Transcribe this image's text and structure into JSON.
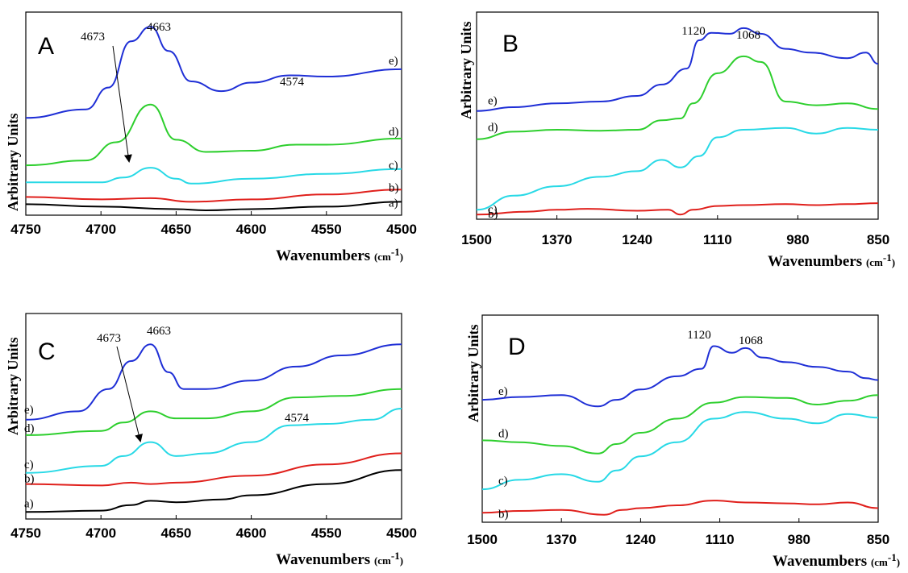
{
  "chart_data": [
    {
      "type": "line",
      "panel_label": "A",
      "ylabel": "Arbitrary  Units",
      "xlabel": "Wavenumbers",
      "xunit": "(cm",
      "xunit_sup": "-1",
      "xunit_close": ")",
      "x_range": [
        4750,
        4500
      ],
      "x_ticks": [
        "4750",
        "4700",
        "4650",
        "4600",
        "4550",
        "4500"
      ],
      "y_ticks": [],
      "annotations": [
        "4673",
        "4663",
        "4574"
      ],
      "series": [
        {
          "label": "a)",
          "color": "#000000",
          "x": [
            4750,
            4700,
            4650,
            4630,
            4600,
            4550,
            4500
          ],
          "y": [
            0.04,
            0.02,
            0.0,
            -0.01,
            0.0,
            0.02,
            0.06
          ]
        },
        {
          "label": "b)",
          "color": "#e0201c",
          "x": [
            4750,
            4700,
            4667,
            4640,
            4600,
            4550,
            4500
          ],
          "y": [
            0.1,
            0.08,
            0.09,
            0.06,
            0.08,
            0.12,
            0.16
          ]
        },
        {
          "label": "c)",
          "color": "#28d9e6",
          "x": [
            4750,
            4700,
            4685,
            4667,
            4650,
            4640,
            4600,
            4550,
            4500
          ],
          "y": [
            0.22,
            0.22,
            0.26,
            0.34,
            0.25,
            0.21,
            0.25,
            0.29,
            0.33
          ]
        },
        {
          "label": "d)",
          "color": "#2ecf2e",
          "x": [
            4750,
            4710,
            4690,
            4667,
            4650,
            4630,
            4600,
            4570,
            4550,
            4500
          ],
          "y": [
            0.36,
            0.4,
            0.55,
            0.86,
            0.57,
            0.47,
            0.48,
            0.53,
            0.53,
            0.58
          ]
        },
        {
          "label": "e)",
          "color": "#1f2fd6",
          "x": [
            4750,
            4710,
            4695,
            4680,
            4667,
            4655,
            4640,
            4620,
            4600,
            4574,
            4550,
            4500
          ],
          "y": [
            0.75,
            0.82,
            1.0,
            1.38,
            1.5,
            1.3,
            1.05,
            0.97,
            1.04,
            1.1,
            1.09,
            1.15
          ]
        }
      ]
    },
    {
      "type": "line",
      "panel_label": "B",
      "ylabel": "Arbitrary  Units",
      "xlabel": "Wavenumbers",
      "xunit": "(cm",
      "xunit_sup": "-1",
      "xunit_close": ")",
      "x_range": [
        1500,
        850
      ],
      "x_ticks": [
        "1500",
        "1370",
        "1240",
        "1110",
        "980",
        "850"
      ],
      "y_ticks": [],
      "annotations": [
        "1120",
        "1068"
      ],
      "series": [
        {
          "label": "b)",
          "color": "#e0201c",
          "x": [
            1500,
            1420,
            1370,
            1320,
            1240,
            1190,
            1170,
            1150,
            1110,
            1068,
            1000,
            950,
            900,
            850
          ],
          "y": [
            0.0,
            0.03,
            0.05,
            0.06,
            0.04,
            0.05,
            0.0,
            0.05,
            0.09,
            0.1,
            0.11,
            0.1,
            0.11,
            0.12
          ]
        },
        {
          "label": "c)",
          "color": "#28d9e6",
          "x": [
            1500,
            1440,
            1370,
            1300,
            1240,
            1200,
            1170,
            1140,
            1110,
            1068,
            1000,
            950,
            900,
            850
          ],
          "y": [
            0.05,
            0.2,
            0.3,
            0.4,
            0.46,
            0.58,
            0.5,
            0.62,
            0.82,
            0.9,
            0.92,
            0.86,
            0.92,
            0.9
          ]
        },
        {
          "label": "d)",
          "color": "#2ecf2e",
          "x": [
            1500,
            1440,
            1370,
            1300,
            1240,
            1200,
            1170,
            1150,
            1110,
            1068,
            1040,
            1000,
            950,
            900,
            850
          ],
          "y": [
            0.8,
            0.88,
            0.9,
            0.89,
            0.9,
            1.0,
            1.02,
            1.18,
            1.5,
            1.68,
            1.62,
            1.2,
            1.16,
            1.18,
            1.12
          ]
        },
        {
          "label": "e)",
          "color": "#1f2fd6",
          "x": [
            1500,
            1440,
            1370,
            1300,
            1240,
            1200,
            1160,
            1140,
            1120,
            1090,
            1068,
            1040,
            1000,
            960,
            900,
            870,
            850
          ],
          "y": [
            1.1,
            1.14,
            1.18,
            1.2,
            1.26,
            1.38,
            1.55,
            1.85,
            1.93,
            1.92,
            1.98,
            1.92,
            1.76,
            1.72,
            1.66,
            1.72,
            1.6
          ]
        }
      ]
    },
    {
      "type": "line",
      "panel_label": "C",
      "ylabel": "Arbitrary  Units",
      "xlabel": "Wavenumbers",
      "xunit": "(cm",
      "xunit_sup": "-1",
      "xunit_close": ")",
      "x_range": [
        4750,
        4500
      ],
      "x_ticks": [
        "4750",
        "4700",
        "4650",
        "4600",
        "4550",
        "4500"
      ],
      "y_ticks": [],
      "annotations": [
        "4673",
        "4663",
        "4574"
      ],
      "series": [
        {
          "label": "a)",
          "color": "#000000",
          "x": [
            4750,
            4700,
            4680,
            4667,
            4650,
            4620,
            4600,
            4550,
            4500
          ],
          "y": [
            0.0,
            0.01,
            0.05,
            0.08,
            0.07,
            0.09,
            0.12,
            0.2,
            0.3
          ]
        },
        {
          "label": "b)",
          "color": "#e0201c",
          "x": [
            4750,
            4700,
            4680,
            4667,
            4650,
            4600,
            4550,
            4500
          ],
          "y": [
            0.2,
            0.19,
            0.21,
            0.2,
            0.21,
            0.26,
            0.34,
            0.42
          ]
        },
        {
          "label": "c)",
          "color": "#28d9e6",
          "x": [
            4750,
            4700,
            4685,
            4667,
            4650,
            4630,
            4600,
            4574,
            4550,
            4520,
            4500
          ],
          "y": [
            0.28,
            0.33,
            0.4,
            0.5,
            0.4,
            0.42,
            0.5,
            0.62,
            0.63,
            0.66,
            0.74
          ]
        },
        {
          "label": "d)",
          "color": "#2ecf2e",
          "x": [
            4750,
            4700,
            4685,
            4667,
            4650,
            4630,
            4600,
            4570,
            4540,
            4500
          ],
          "y": [
            0.55,
            0.58,
            0.64,
            0.72,
            0.67,
            0.67,
            0.72,
            0.82,
            0.83,
            0.88
          ]
        },
        {
          "label": "e)",
          "color": "#1f2fd6",
          "x": [
            4750,
            4715,
            4695,
            4680,
            4667,
            4655,
            4645,
            4630,
            4600,
            4570,
            4540,
            4500
          ],
          "y": [
            0.66,
            0.72,
            0.88,
            1.08,
            1.2,
            1.0,
            0.88,
            0.88,
            0.94,
            1.04,
            1.12,
            1.2
          ]
        }
      ]
    },
    {
      "type": "line",
      "panel_label": "D",
      "ylabel": "Arbitrary  Units",
      "xlabel": "Wavenumbers",
      "xunit": "(cm",
      "xunit_sup": "-1",
      "xunit_close": ")",
      "x_range": [
        1500,
        850
      ],
      "x_ticks": [
        "1500",
        "1370",
        "1240",
        "1110",
        "980",
        "850"
      ],
      "y_ticks": [],
      "annotations": [
        "1120",
        "1068"
      ],
      "series": [
        {
          "label": "b)",
          "color": "#e0201c",
          "x": [
            1500,
            1440,
            1370,
            1300,
            1270,
            1240,
            1180,
            1120,
            1068,
            1000,
            950,
            900,
            850
          ],
          "y": [
            0.05,
            0.07,
            0.08,
            0.03,
            0.08,
            0.1,
            0.13,
            0.18,
            0.16,
            0.15,
            0.14,
            0.16,
            0.1
          ]
        },
        {
          "label": "c)",
          "color": "#28d9e6",
          "x": [
            1500,
            1440,
            1370,
            1310,
            1280,
            1240,
            1180,
            1120,
            1068,
            1000,
            950,
            900,
            850
          ],
          "y": [
            0.3,
            0.4,
            0.46,
            0.38,
            0.5,
            0.65,
            0.8,
            1.05,
            1.12,
            1.05,
            1.0,
            1.1,
            1.06
          ]
        },
        {
          "label": "d)",
          "color": "#2ecf2e",
          "x": [
            1500,
            1440,
            1370,
            1310,
            1280,
            1240,
            1180,
            1120,
            1068,
            1000,
            950,
            900,
            850
          ],
          "y": [
            0.82,
            0.8,
            0.76,
            0.68,
            0.78,
            0.9,
            1.05,
            1.22,
            1.28,
            1.27,
            1.2,
            1.24,
            1.3
          ]
        },
        {
          "label": "e)",
          "color": "#1f2fd6",
          "x": [
            1500,
            1440,
            1370,
            1310,
            1280,
            1240,
            1180,
            1140,
            1120,
            1090,
            1068,
            1040,
            1000,
            950,
            900,
            870,
            850
          ],
          "y": [
            1.25,
            1.28,
            1.3,
            1.18,
            1.25,
            1.36,
            1.5,
            1.58,
            1.82,
            1.75,
            1.8,
            1.7,
            1.65,
            1.6,
            1.55,
            1.48,
            1.46
          ]
        }
      ]
    }
  ]
}
